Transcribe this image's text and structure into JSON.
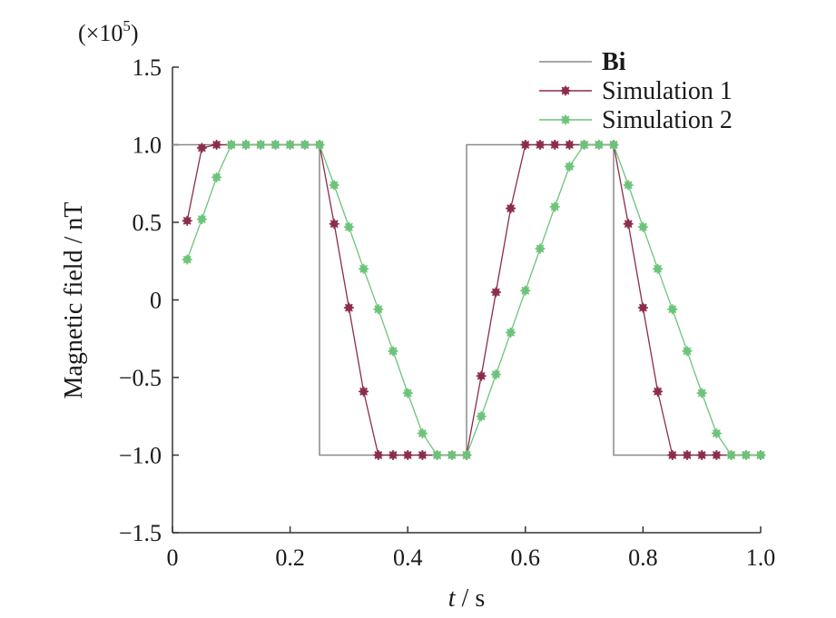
{
  "chart_data": {
    "type": "line",
    "multiplier_label": "(×10",
    "multiplier_exponent": "5",
    "multiplier_close": ")",
    "xlabel_italic": "t",
    "xlabel_rest": " / s",
    "ylabel": "Magnetic field / nT",
    "xlim": [
      0,
      1.0
    ],
    "ylim": [
      -1.5,
      1.5
    ],
    "x_ticks": [
      0,
      0.2,
      0.4,
      0.6,
      0.8,
      1.0
    ],
    "x_tick_labels": [
      "0",
      "0.2",
      "0.4",
      "0.6",
      "0.8",
      "1.0"
    ],
    "y_ticks": [
      1.5,
      1.0,
      0.5,
      0,
      -0.5,
      -1.0,
      -1.5
    ],
    "y_tick_labels": [
      "1.5",
      "1.0",
      "0.5",
      "0",
      "−0.5",
      "−1.0",
      "−1.5"
    ],
    "legend_position": "top-right",
    "grid": false,
    "series": [
      {
        "name": "Bi",
        "color": "#8a8a8a",
        "marker": "none",
        "x": [
          0,
          0.25,
          0.25,
          0.5,
          0.5,
          0.75,
          0.75,
          1.0
        ],
        "y": [
          1.0,
          1.0,
          -1.0,
          -1.0,
          1.0,
          1.0,
          -1.0,
          -1.0
        ]
      },
      {
        "name": "Simulation 1",
        "color": "#8b2d4a",
        "marker": "star",
        "x": [
          0.025,
          0.05,
          0.075,
          0.1,
          0.125,
          0.15,
          0.175,
          0.2,
          0.225,
          0.25,
          0.275,
          0.3,
          0.325,
          0.35,
          0.375,
          0.4,
          0.425,
          0.45,
          0.475,
          0.5,
          0.525,
          0.55,
          0.575,
          0.6,
          0.625,
          0.65,
          0.675,
          0.7,
          0.725,
          0.75,
          0.775,
          0.8,
          0.825,
          0.85,
          0.875,
          0.9,
          0.925,
          0.95,
          0.975,
          1.0
        ],
        "y": [
          0.51,
          0.98,
          1.0,
          1.0,
          1.0,
          1.0,
          1.0,
          1.0,
          1.0,
          1.0,
          0.49,
          -0.05,
          -0.59,
          -1.0,
          -1.0,
          -1.0,
          -1.0,
          -1.0,
          -1.0,
          -1.0,
          -0.49,
          0.05,
          0.59,
          1.0,
          1.0,
          1.0,
          1.0,
          1.0,
          1.0,
          1.0,
          0.49,
          -0.05,
          -0.59,
          -1.0,
          -1.0,
          -1.0,
          -1.0,
          -1.0,
          -1.0,
          -1.0
        ]
      },
      {
        "name": "Simulation 2",
        "color": "#6cc47a",
        "marker": "star",
        "x": [
          0.025,
          0.05,
          0.075,
          0.1,
          0.125,
          0.15,
          0.175,
          0.2,
          0.225,
          0.25,
          0.275,
          0.3,
          0.325,
          0.35,
          0.375,
          0.4,
          0.425,
          0.45,
          0.475,
          0.5,
          0.525,
          0.55,
          0.575,
          0.6,
          0.625,
          0.65,
          0.675,
          0.7,
          0.725,
          0.75,
          0.775,
          0.8,
          0.825,
          0.85,
          0.875,
          0.9,
          0.925,
          0.95,
          0.975,
          1.0
        ],
        "y": [
          0.26,
          0.52,
          0.79,
          1.0,
          1.0,
          1.0,
          1.0,
          1.0,
          1.0,
          1.0,
          0.74,
          0.47,
          0.2,
          -0.06,
          -0.33,
          -0.6,
          -0.86,
          -1.0,
          -1.0,
          -1.0,
          -0.75,
          -0.48,
          -0.21,
          0.06,
          0.33,
          0.6,
          0.86,
          1.0,
          1.0,
          1.0,
          0.74,
          0.47,
          0.2,
          -0.06,
          -0.33,
          -0.6,
          -0.86,
          -1.0,
          -1.0,
          -1.0
        ]
      }
    ]
  }
}
